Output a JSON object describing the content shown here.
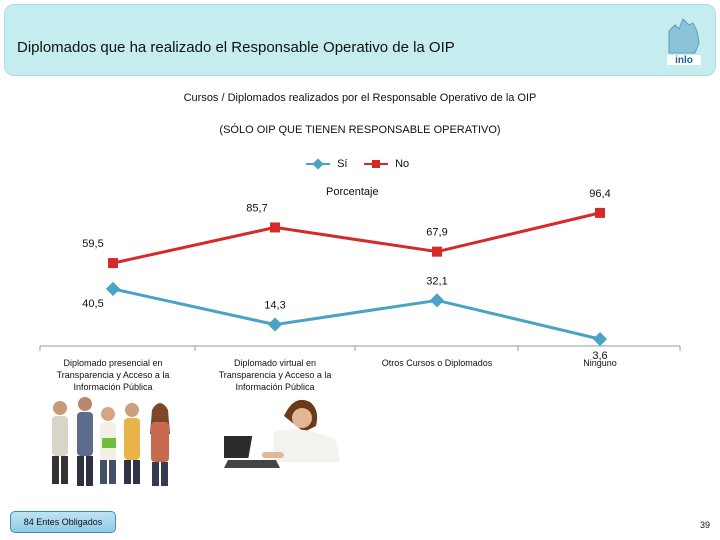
{
  "header": {
    "title": "Diplomados que ha realizado el Responsable Operativo de la OIP",
    "logo_text": "inlo"
  },
  "chart_data": {
    "type": "line",
    "title": "Cursos / Diplomados realizados por el Responsable Operativo de la OIP",
    "subtitle": "(SÓLO OIP QUE TIENEN RESPONSABLE OPERATIVO)",
    "unit_label": "Porcentaje",
    "categories": [
      "Diplomado presencial en Transparencia y Acceso a la Información Pública",
      "Diplomado virtual en Transparencia y Acceso a la Información Pública",
      "Otros Cursos o Diplomados",
      "Ninguno"
    ],
    "series": [
      {
        "name": "Sí",
        "color": "#4aa3c4",
        "marker": "diamond",
        "values": [
          40.5,
          14.3,
          32.1,
          3.6
        ],
        "labels": [
          "40,5",
          "14,3",
          "32,1",
          "3,6"
        ]
      },
      {
        "name": "No",
        "color": "#d62a2a",
        "marker": "square",
        "values": [
          59.5,
          85.7,
          67.9,
          96.4
        ],
        "labels": [
          "59,5",
          "85,7",
          "67,9",
          "96,4"
        ]
      }
    ],
    "grid": false
  },
  "footer": {
    "badge": "84 Entes Obligados",
    "page": "39"
  }
}
